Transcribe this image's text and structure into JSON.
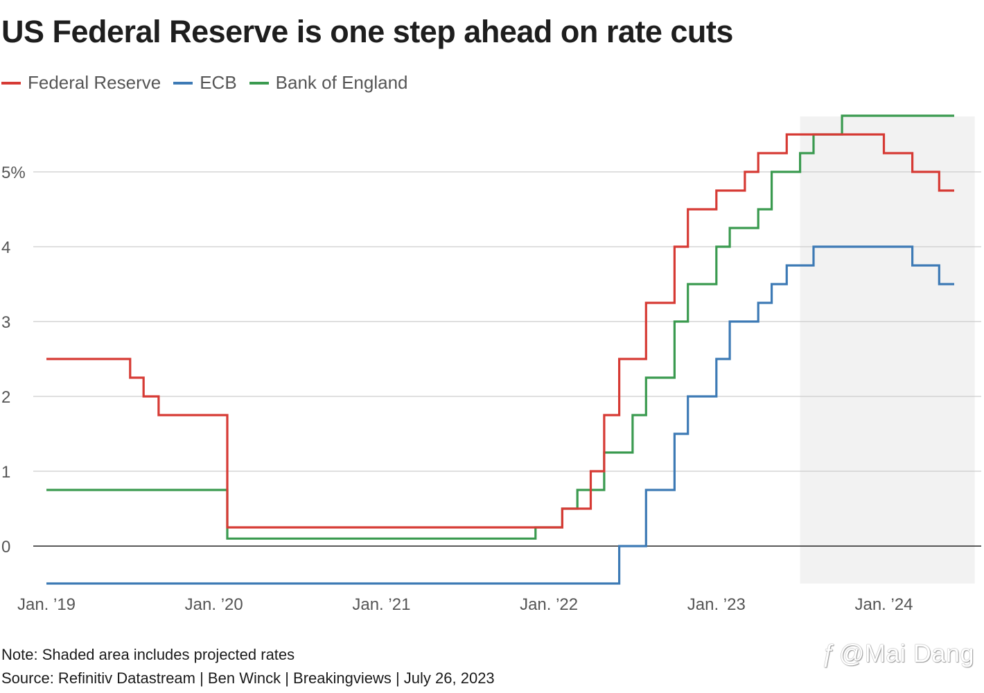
{
  "chart_data": {
    "type": "line",
    "step": true,
    "title": "US Federal Reserve is one step ahead on rate cuts",
    "xlabel": "",
    "ylabel": "",
    "x_unit": "years since Jan. 2019",
    "xlim": [
      0,
      5.46
    ],
    "ylim": [
      -0.6,
      5.95
    ],
    "yticks": [
      0,
      1,
      2,
      3,
      4,
      5
    ],
    "ytick_labels": [
      "0",
      "1",
      "2",
      "3",
      "4",
      "5%"
    ],
    "xticks": [
      0,
      1,
      2,
      3,
      4,
      5
    ],
    "xtick_labels": [
      "Jan. ’19",
      "Jan. ’20",
      "Jan. ’21",
      "Jan. ’22",
      "Jan. ’23",
      "Jan. ’24"
    ],
    "grid": true,
    "shaded_region": {
      "x_start": 4.5,
      "x_end": 5.46,
      "color": "#f2f2f2"
    },
    "legend_position": "top-left",
    "series": [
      {
        "name": "Federal Reserve",
        "color": "#d63a34",
        "points": [
          [
            0.0,
            2.5
          ],
          [
            0.5,
            2.25
          ],
          [
            0.58,
            2.0
          ],
          [
            0.67,
            1.75
          ],
          [
            1.08,
            0.25
          ],
          [
            3.08,
            0.5
          ],
          [
            3.25,
            1.0
          ],
          [
            3.33,
            1.75
          ],
          [
            3.42,
            2.5
          ],
          [
            3.58,
            3.25
          ],
          [
            3.75,
            4.0
          ],
          [
            3.83,
            4.5
          ],
          [
            4.0,
            4.75
          ],
          [
            4.17,
            5.0
          ],
          [
            4.25,
            5.25
          ],
          [
            4.42,
            5.5
          ],
          [
            5.0,
            5.25
          ],
          [
            5.17,
            5.0
          ],
          [
            5.33,
            4.75
          ],
          [
            5.42,
            4.75
          ]
        ]
      },
      {
        "name": "ECB",
        "color": "#3d7ab5",
        "points": [
          [
            0.0,
            -0.5
          ],
          [
            3.42,
            0.0
          ],
          [
            3.58,
            0.75
          ],
          [
            3.75,
            1.5
          ],
          [
            3.83,
            2.0
          ],
          [
            4.0,
            2.5
          ],
          [
            4.08,
            3.0
          ],
          [
            4.25,
            3.25
          ],
          [
            4.33,
            3.5
          ],
          [
            4.42,
            3.75
          ],
          [
            4.58,
            4.0
          ],
          [
            5.17,
            3.75
          ],
          [
            5.33,
            3.5
          ],
          [
            5.42,
            3.5
          ]
        ]
      },
      {
        "name": "Bank of England",
        "color": "#3a9a4f",
        "points": [
          [
            0.0,
            0.75
          ],
          [
            1.08,
            0.1
          ],
          [
            2.92,
            0.25
          ],
          [
            3.08,
            0.5
          ],
          [
            3.17,
            0.75
          ],
          [
            3.33,
            1.25
          ],
          [
            3.5,
            1.75
          ],
          [
            3.58,
            2.25
          ],
          [
            3.75,
            3.0
          ],
          [
            3.83,
            3.5
          ],
          [
            4.0,
            4.0
          ],
          [
            4.08,
            4.25
          ],
          [
            4.25,
            4.5
          ],
          [
            4.33,
            5.0
          ],
          [
            4.5,
            5.25
          ],
          [
            4.58,
            5.5
          ],
          [
            4.75,
            5.75
          ],
          [
            5.42,
            5.75
          ]
        ]
      }
    ]
  },
  "note": "Note: Shaded area includes projected rates",
  "source": "Source: Refinitiv Datastream | Ben Winck | Breakingviews | July 26, 2023",
  "watermark": "@Mai Dang",
  "watermark_icon": "zhihu-logo-icon",
  "colors": {
    "grid": "#cccccc",
    "zero_line": "#222222",
    "tick_text": "#555555"
  }
}
